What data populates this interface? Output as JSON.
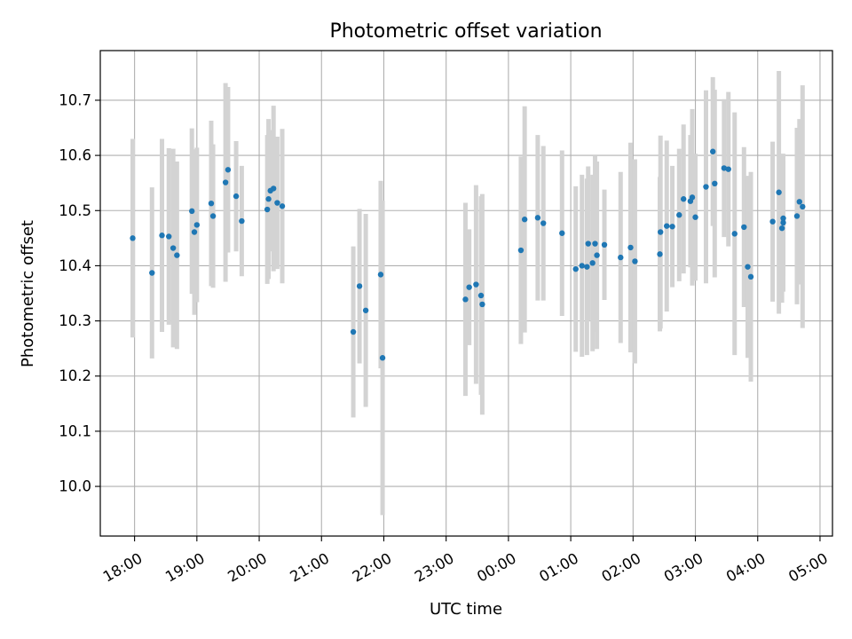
{
  "chart_data": {
    "type": "scatter",
    "title": "Photometric offset variation",
    "xlabel": "UTC time",
    "ylabel": "Photometric offset",
    "xlim": [
      17.45,
      29.2
    ],
    "ylim": [
      9.91,
      10.79
    ],
    "grid": true,
    "colors": {
      "point": "#1f77b4",
      "errorbar": "#d3d3d3",
      "grid": "#b0b0b0"
    },
    "x_ticks": [
      {
        "value": 18,
        "label": "18:00"
      },
      {
        "value": 19,
        "label": "19:00"
      },
      {
        "value": 20,
        "label": "20:00"
      },
      {
        "value": 21,
        "label": "21:00"
      },
      {
        "value": 22,
        "label": "22:00"
      },
      {
        "value": 23,
        "label": "23:00"
      },
      {
        "value": 24,
        "label": "00:00"
      },
      {
        "value": 25,
        "label": "01:00"
      },
      {
        "value": 26,
        "label": "02:00"
      },
      {
        "value": 27,
        "label": "03:00"
      },
      {
        "value": 28,
        "label": "04:00"
      },
      {
        "value": 29,
        "label": "05:00"
      }
    ],
    "y_ticks": [
      {
        "value": 10.0,
        "label": "10.0"
      },
      {
        "value": 10.1,
        "label": "10.1"
      },
      {
        "value": 10.2,
        "label": "10.2"
      },
      {
        "value": 10.3,
        "label": "10.3"
      },
      {
        "value": 10.4,
        "label": "10.4"
      },
      {
        "value": 10.5,
        "label": "10.5"
      },
      {
        "value": 10.6,
        "label": "10.6"
      },
      {
        "value": 10.7,
        "label": "10.7"
      }
    ],
    "points": [
      [
        17.97,
        10.45,
        0.18
      ],
      [
        18.28,
        10.387,
        0.155
      ],
      [
        18.44,
        10.455,
        0.175
      ],
      [
        18.55,
        10.453,
        0.16
      ],
      [
        18.62,
        10.432,
        0.18
      ],
      [
        18.68,
        10.419,
        0.17
      ],
      [
        18.92,
        10.499,
        0.15
      ],
      [
        18.96,
        10.461,
        0.15
      ],
      [
        19.0,
        10.474,
        0.14
      ],
      [
        19.23,
        10.513,
        0.15
      ],
      [
        19.26,
        10.49,
        0.13
      ],
      [
        19.46,
        10.551,
        0.18
      ],
      [
        19.5,
        10.574,
        0.15
      ],
      [
        19.63,
        10.526,
        0.1
      ],
      [
        19.72,
        10.481,
        0.1
      ],
      [
        20.13,
        10.502,
        0.135
      ],
      [
        20.15,
        10.521,
        0.145
      ],
      [
        20.18,
        10.536,
        0.11
      ],
      [
        20.23,
        10.54,
        0.15
      ],
      [
        20.29,
        10.514,
        0.12
      ],
      [
        20.37,
        10.508,
        0.14
      ],
      [
        21.51,
        10.28,
        0.155
      ],
      [
        21.61,
        10.363,
        0.14
      ],
      [
        21.71,
        10.319,
        0.175
      ],
      [
        21.95,
        10.384,
        0.17
      ],
      [
        21.98,
        10.233,
        0.285
      ],
      [
        23.31,
        10.339,
        0.175
      ],
      [
        23.37,
        10.361,
        0.105
      ],
      [
        23.48,
        10.366,
        0.18
      ],
      [
        23.56,
        10.346,
        0.18
      ],
      [
        23.58,
        10.33,
        0.2
      ],
      [
        24.2,
        10.428,
        0.17
      ],
      [
        24.26,
        10.484,
        0.205
      ],
      [
        24.47,
        10.487,
        0.15
      ],
      [
        24.56,
        10.477,
        0.14
      ],
      [
        24.86,
        10.459,
        0.15
      ],
      [
        25.08,
        10.394,
        0.15
      ],
      [
        25.18,
        10.4,
        0.165
      ],
      [
        25.26,
        10.398,
        0.16
      ],
      [
        25.28,
        10.44,
        0.14
      ],
      [
        25.35,
        10.405,
        0.16
      ],
      [
        25.39,
        10.44,
        0.16
      ],
      [
        25.42,
        10.419,
        0.17
      ],
      [
        25.54,
        10.438,
        0.1
      ],
      [
        25.8,
        10.415,
        0.155
      ],
      [
        25.96,
        10.433,
        0.19
      ],
      [
        26.03,
        10.408,
        0.185
      ],
      [
        26.43,
        10.421,
        0.14
      ],
      [
        26.44,
        10.461,
        0.175
      ],
      [
        26.54,
        10.472,
        0.155
      ],
      [
        26.63,
        10.471,
        0.11
      ],
      [
        26.74,
        10.492,
        0.12
      ],
      [
        26.81,
        10.521,
        0.135
      ],
      [
        26.92,
        10.517,
        0.12
      ],
      [
        26.95,
        10.524,
        0.16
      ],
      [
        27.0,
        10.488,
        0.115
      ],
      [
        27.17,
        10.543,
        0.175
      ],
      [
        27.28,
        10.607,
        0.135
      ],
      [
        27.31,
        10.549,
        0.17
      ],
      [
        27.46,
        10.577,
        0.125
      ],
      [
        27.53,
        10.575,
        0.14
      ],
      [
        27.63,
        10.458,
        0.22
      ],
      [
        27.78,
        10.47,
        0.145
      ],
      [
        27.84,
        10.398,
        0.165
      ],
      [
        27.89,
        10.38,
        0.19
      ],
      [
        28.24,
        10.48,
        0.145
      ],
      [
        28.34,
        10.533,
        0.22
      ],
      [
        28.39,
        10.468,
        0.135
      ],
      [
        28.41,
        10.486,
        0.105
      ],
      [
        28.41,
        10.478,
        0.125
      ],
      [
        28.63,
        10.49,
        0.16
      ],
      [
        28.67,
        10.516,
        0.15
      ],
      [
        28.72,
        10.507,
        0.22
      ]
    ]
  }
}
